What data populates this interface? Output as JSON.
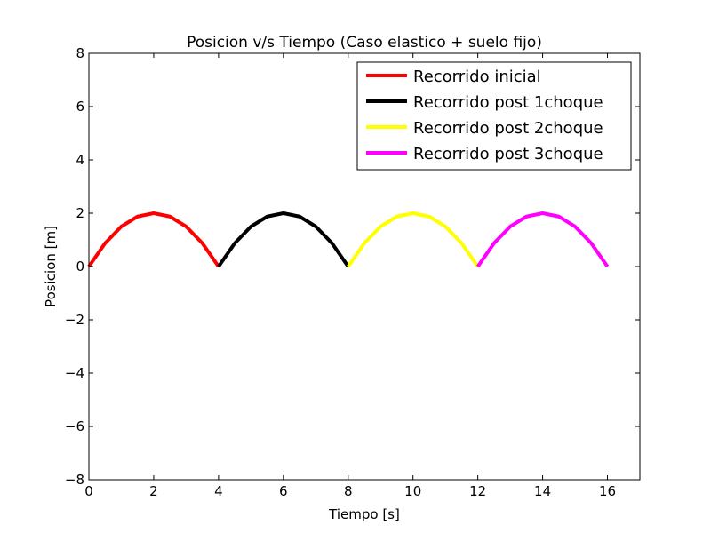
{
  "chart_data": {
    "type": "line",
    "title": "Posicion v/s Tiempo (Caso elastico + suelo fijo)",
    "xlabel": "Tiempo [s]",
    "ylabel": "Posicion [m]",
    "xlim": [
      0,
      17
    ],
    "ylim": [
      -8,
      8
    ],
    "x_ticks": [
      0,
      2,
      4,
      6,
      8,
      10,
      12,
      14,
      16
    ],
    "y_ticks": [
      -8,
      -6,
      -4,
      -2,
      0,
      2,
      4,
      6,
      8
    ],
    "x_tick_labels": [
      "0",
      "2",
      "4",
      "6",
      "8",
      "10",
      "12",
      "14",
      "16"
    ],
    "y_tick_labels": [
      "−8",
      "−6",
      "−4",
      "−2",
      "0",
      "2",
      "4",
      "6",
      "8"
    ],
    "grid": false,
    "legend_position": "top-right",
    "series": [
      {
        "name": "Recorrido inicial",
        "color": "#ff0000",
        "x": [
          0,
          0.5,
          1,
          1.5,
          2,
          2.5,
          3,
          3.5,
          4
        ],
        "y": [
          0,
          0.875,
          1.5,
          1.875,
          2,
          1.875,
          1.5,
          0.875,
          0
        ]
      },
      {
        "name": "Recorrido post 1choque",
        "color": "#000000",
        "x": [
          4,
          4.5,
          5,
          5.5,
          6,
          6.5,
          7,
          7.5,
          8
        ],
        "y": [
          0,
          0.875,
          1.5,
          1.875,
          2,
          1.875,
          1.5,
          0.875,
          0
        ]
      },
      {
        "name": "Recorrido post 2choque",
        "color": "#ffff00",
        "x": [
          8,
          8.5,
          9,
          9.5,
          10,
          10.5,
          11,
          11.5,
          12
        ],
        "y": [
          0,
          0.875,
          1.5,
          1.875,
          2,
          1.875,
          1.5,
          0.875,
          0
        ]
      },
      {
        "name": "Recorrido post 3choque",
        "color": "#ff00ff",
        "x": [
          12,
          12.5,
          13,
          13.5,
          14,
          14.5,
          15,
          15.5,
          16
        ],
        "y": [
          0,
          0.875,
          1.5,
          1.875,
          2,
          1.875,
          1.5,
          0.875,
          0
        ]
      }
    ]
  }
}
